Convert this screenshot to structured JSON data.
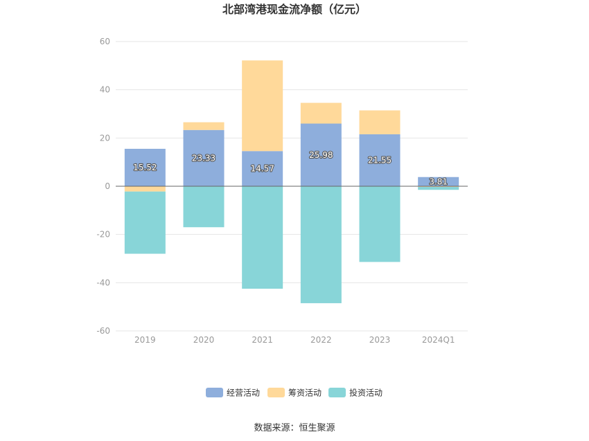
{
  "chart_data": {
    "type": "bar",
    "stacked": true,
    "title": "北部湾港现金流净额（亿元）",
    "categories": [
      "2019",
      "2020",
      "2021",
      "2022",
      "2023",
      "2024Q1"
    ],
    "series": [
      {
        "name": "经营活动",
        "color": "#8eaedc",
        "values": [
          15.52,
          23.33,
          14.57,
          25.98,
          21.55,
          3.81
        ],
        "labeled": true
      },
      {
        "name": "筹资活动",
        "color": "#ffd99a",
        "values": [
          -2.2,
          3.2,
          37.6,
          8.6,
          9.9,
          -0.3
        ],
        "labeled": false
      },
      {
        "name": "投资活动",
        "color": "#88d5d8",
        "values": [
          -25.8,
          -17.0,
          -42.5,
          -48.5,
          -31.4,
          -1.2
        ],
        "labeled": false
      }
    ],
    "ylim": [
      -60,
      60
    ],
    "yticks": [
      -60,
      -40,
      -20,
      0,
      20,
      40,
      60
    ],
    "grid": true,
    "legend_position": "bottom",
    "source": "数据来源：恒生聚源"
  }
}
